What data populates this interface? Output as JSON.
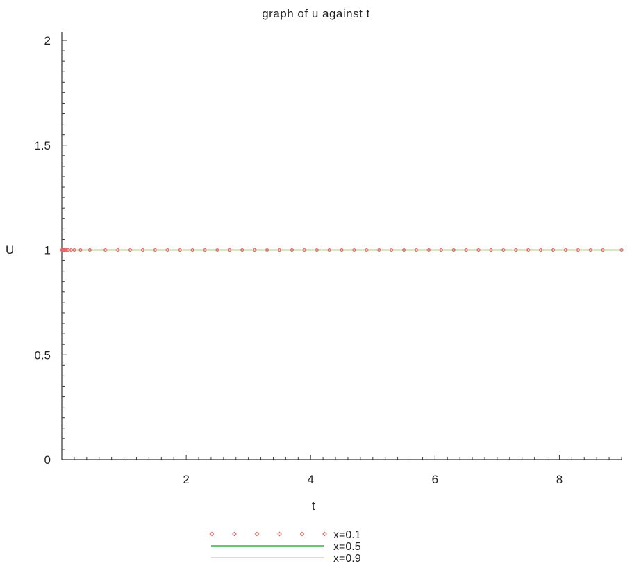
{
  "chart_data": {
    "type": "line",
    "title": "graph of u against t",
    "xlabel": "t",
    "ylabel": "U",
    "xlim": [
      0,
      9
    ],
    "ylim": [
      0,
      2
    ],
    "x_ticks": [
      "2",
      "4",
      "6",
      "8"
    ],
    "y_ticks": [
      "0",
      "0.5",
      "1",
      "1.5",
      "2"
    ],
    "grid": false,
    "legend_position": "bottom-center",
    "series": [
      {
        "name": "x=0.1",
        "style": "points",
        "marker": "diamond",
        "color": "#e06666",
        "x": [
          0,
          0.01,
          0.02,
          0.03,
          0.04,
          0.05,
          0.07,
          0.1,
          0.15,
          0.2,
          0.3,
          0.45,
          0.7,
          0.9,
          1.1,
          1.3,
          1.5,
          1.7,
          1.9,
          2.1,
          2.3,
          2.5,
          2.7,
          2.9,
          3.1,
          3.3,
          3.5,
          3.7,
          3.9,
          4.1,
          4.3,
          4.5,
          4.7,
          4.9,
          5.1,
          5.3,
          5.5,
          5.7,
          5.9,
          6.1,
          6.3,
          6.5,
          6.7,
          6.9,
          7.1,
          7.3,
          7.5,
          7.7,
          7.9,
          8.1,
          8.3,
          8.5,
          8.7,
          9.0
        ],
        "y": [
          1,
          1,
          1,
          1,
          1,
          1,
          1,
          1,
          1,
          1,
          1,
          1,
          1,
          1,
          1,
          1,
          1,
          1,
          1,
          1,
          1,
          1,
          1,
          1,
          1,
          1,
          1,
          1,
          1,
          1,
          1,
          1,
          1,
          1,
          1,
          1,
          1,
          1,
          1,
          1,
          1,
          1,
          1,
          1,
          1,
          1,
          1,
          1,
          1,
          1,
          1,
          1,
          1,
          1
        ]
      },
      {
        "name": "x=0.5",
        "style": "line",
        "color": "#5cb85c",
        "x": [
          0,
          9
        ],
        "y": [
          1,
          1
        ]
      },
      {
        "name": "x=0.9",
        "style": "line",
        "color": "#e8e05a",
        "x": [
          0,
          9
        ],
        "y": [
          1,
          1
        ]
      }
    ]
  }
}
